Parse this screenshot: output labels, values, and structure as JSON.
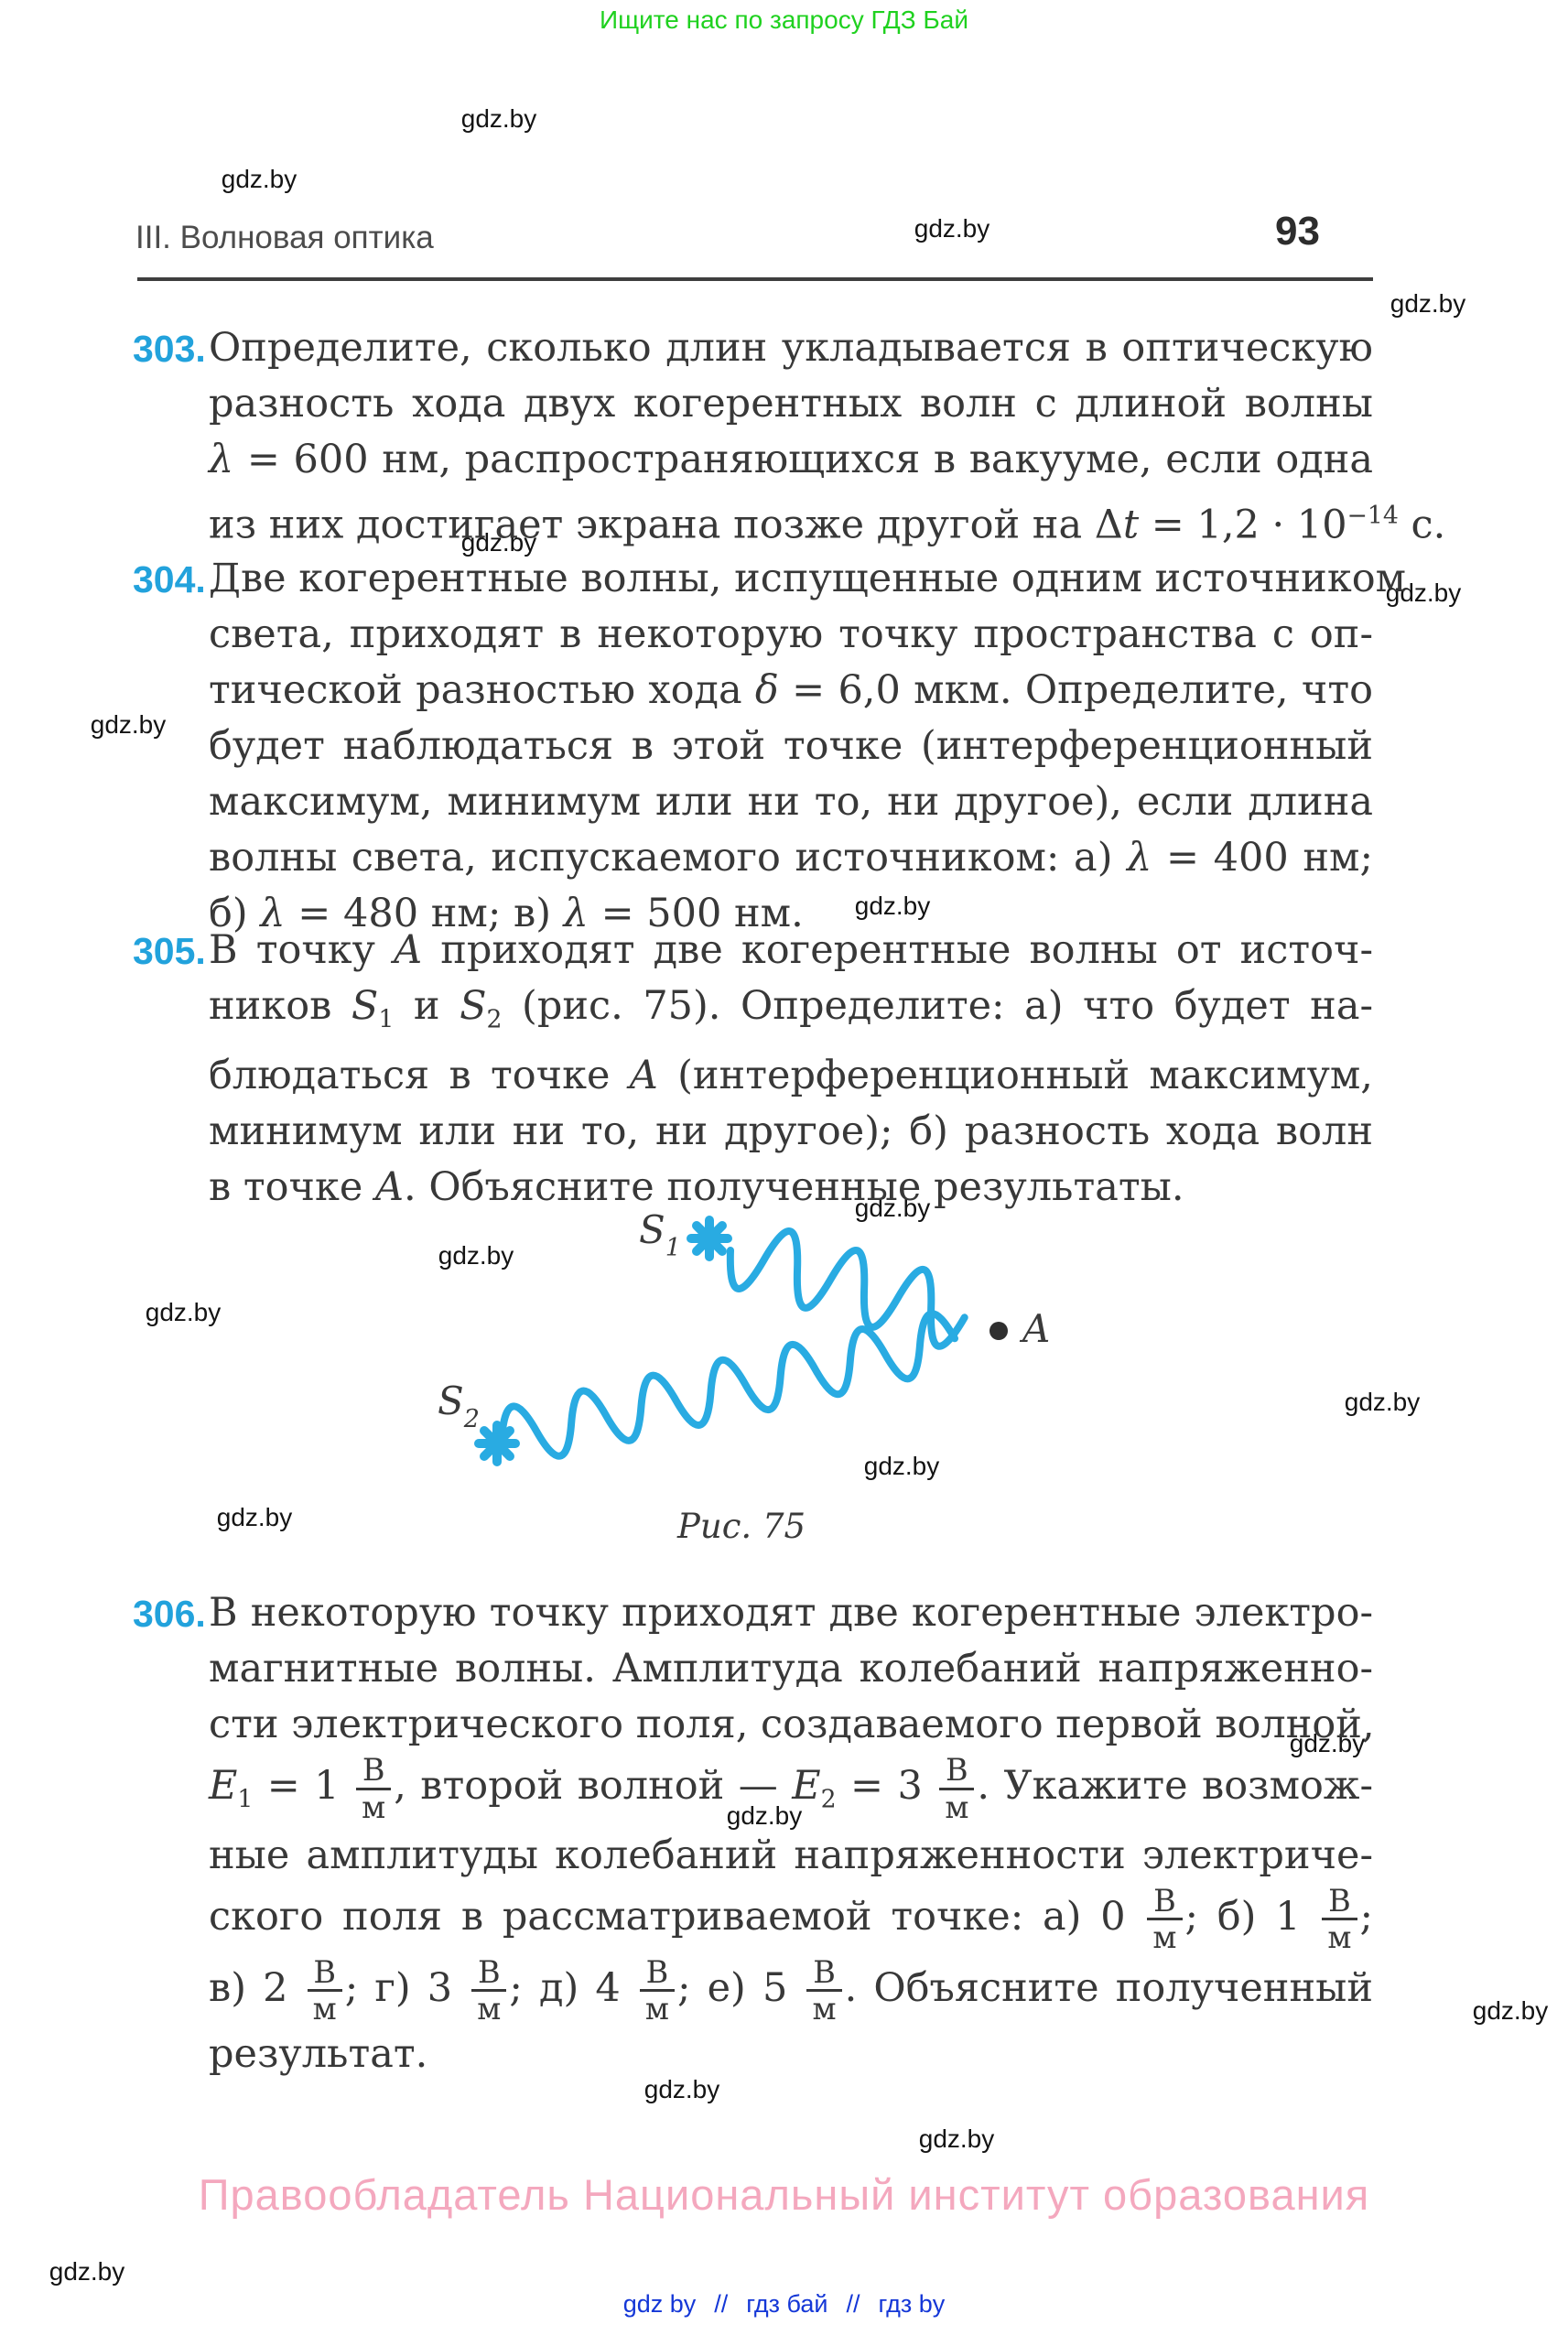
{
  "page": {
    "banner": "Ищите нас по запросу ГДЗ Бай",
    "watermark": "gdz.by",
    "header": {
      "chapter": "III. Волновая оптика",
      "page_number": "93"
    },
    "footer": {
      "copyright": "Правообладатель Национальный институт образования",
      "links": [
        "gdz by",
        "гдз бай",
        "гдз by"
      ],
      "separator": "//"
    }
  },
  "colors": {
    "accent_blue": "#22a2dc",
    "wave_blue": "#29abe2",
    "banner_green": "#1fd11f",
    "footer_pink": "#f4a8be",
    "footer_link_blue": "#1437d7"
  },
  "problems": [
    {
      "number": "303.",
      "lines": [
        "Определите, сколько длин укладывается в оптическую",
        "разность хода двух когерентных волн с длиной волны",
        "<i>λ</i> = 600 нм, распространяющихся в вакууме, если одна",
        "из них достигает экрана позже другой на Δ<i>t</i> = 1,2 · 10<sup>−14</sup> с."
      ]
    },
    {
      "number": "304.",
      "lines": [
        "Две когерентные волны, испущенные одним источником",
        "света, приходят в некоторую точку пространства с оп-",
        "тической разностью хода <i>δ</i> = 6,0 мкм. Определите, что",
        "будет наблюдаться в этой точке (интерференционный",
        "максимум, минимум или ни то, ни другое), если длина",
        "волны света, испускаемого источником: а) <i>λ</i> = 400 нм;",
        "б) <i>λ</i> = 480 нм; в) <i>λ</i> = 500 нм."
      ]
    },
    {
      "number": "305.",
      "lines": [
        "В точку <i>A</i> приходят две когерентные волны от источ-",
        "ников <i>S</i><sub>1</sub> и <i>S</i><sub>2</sub> (рис. 75). Определите: а) что будет на-",
        "блюдаться в точке <i>A</i> (интерференционный максимум,",
        "минимум или ни то, ни другое); б) разность хода волн",
        "в точке <i>A</i>. Объясните полученные результаты."
      ]
    },
    {
      "number": "306.",
      "lines": [
        "В некоторую точку приходят две когерентные электро-",
        "магнитные волны. Амплитуда колебаний напряженно-",
        "сти электрического поля, создаваемого первой волной,",
        "<i>E</i><sub>1</sub> = 1 <span class='fr'><b>В</b><b class='d'>м</b></span>, второй волной — <i>E</i><sub>2</sub> = 3 <span class='fr'><b>В</b><b class='d'>м</b></span>. Укажите возмож-",
        "ные амплитуды колебаний напряженности электриче-",
        "ского поля в рассматриваемой точке: а) 0 <span class='fr'><b>В</b><b class='d'>м</b></span>; б) 1 <span class='fr'><b>В</b><b class='d'>м</b></span>;",
        "в) 2 <span class='fr'><b>В</b><b class='d'>м</b></span>; г) 3 <span class='fr'><b>В</b><b class='d'>м</b></span>; д) 4 <span class='fr'><b>В</b><b class='d'>м</b></span>; е) 5 <span class='fr'><b>В</b><b class='d'>м</b></span>. Объясните полученный",
        "результат."
      ]
    }
  ],
  "figure": {
    "caption": "Рис. 75",
    "source1": {
      "base": "S",
      "sub": "1"
    },
    "source2": {
      "base": "S",
      "sub": "2"
    },
    "point_label": "A"
  }
}
